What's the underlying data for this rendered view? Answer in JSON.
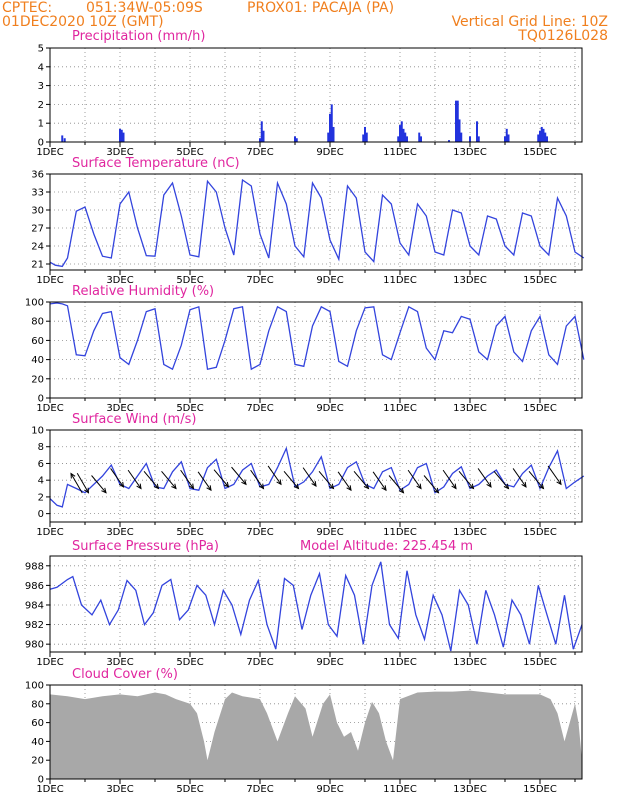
{
  "header": {
    "source": "CPTEC:",
    "coords": "051:34W-05:09S",
    "location": "PROX01: PACAJA (PA)",
    "init_time": "01DEC2020 10Z (GMT)",
    "grid_note": "Vertical Grid Line: 10Z",
    "run_code": "TQ0126L028"
  },
  "x_axis": {
    "tick_labels": [
      "1DEC",
      "3DEC",
      "5DEC",
      "7DEC",
      "9DEC",
      "11DEC",
      "13DEC",
      "15DEC"
    ],
    "range_days": [
      0,
      15.2
    ]
  },
  "colors": {
    "line": "#3344dd",
    "bar": "#2233dd",
    "cloud": "#a8a8a8",
    "title": "#e0269f",
    "header": "#f07f1e"
  },
  "chart_data": [
    {
      "id": "precip",
      "type": "bar",
      "title": "Precipitation (mm/h)",
      "ylim": [
        0,
        5
      ],
      "yticks": [
        0,
        1,
        2,
        3,
        4,
        5
      ],
      "x_unit": "days since 01DEC 10Z",
      "bars": [
        [
          0.35,
          0.35
        ],
        [
          0.42,
          0.2
        ],
        [
          2.0,
          0.7
        ],
        [
          2.05,
          0.65
        ],
        [
          2.1,
          0.5
        ],
        [
          6.0,
          0.2
        ],
        [
          6.05,
          1.1
        ],
        [
          6.1,
          0.6
        ],
        [
          7.0,
          0.3
        ],
        [
          7.05,
          0.2
        ],
        [
          7.95,
          0.5
        ],
        [
          8.0,
          1.5
        ],
        [
          8.05,
          2.0
        ],
        [
          8.1,
          0.8
        ],
        [
          8.95,
          0.4
        ],
        [
          9.0,
          0.8
        ],
        [
          9.05,
          0.5
        ],
        [
          9.95,
          0.3
        ],
        [
          10.0,
          0.9
        ],
        [
          10.05,
          1.1
        ],
        [
          10.1,
          0.7
        ],
        [
          10.15,
          0.5
        ],
        [
          10.2,
          0.3
        ],
        [
          10.55,
          0.5
        ],
        [
          10.6,
          0.3
        ],
        [
          11.4,
          0.1
        ],
        [
          11.6,
          2.2
        ],
        [
          11.65,
          2.2
        ],
        [
          11.7,
          1.2
        ],
        [
          11.75,
          0.5
        ],
        [
          12.0,
          0.3
        ],
        [
          12.2,
          1.1
        ],
        [
          12.25,
          0.3
        ],
        [
          13.0,
          0.3
        ],
        [
          13.05,
          0.7
        ],
        [
          13.1,
          0.4
        ],
        [
          13.95,
          0.4
        ],
        [
          14.0,
          0.6
        ],
        [
          14.05,
          0.8
        ],
        [
          14.1,
          0.7
        ],
        [
          14.15,
          0.5
        ],
        [
          14.2,
          0.3
        ]
      ]
    },
    {
      "id": "temp",
      "type": "line",
      "title": "Surface Temperature (nC)",
      "ylim": [
        20,
        36
      ],
      "yticks": [
        21,
        24,
        27,
        30,
        33,
        36
      ],
      "x": [
        0,
        0.15,
        0.35,
        0.5,
        0.75,
        1.0,
        1.25,
        1.5,
        1.75,
        2.0,
        2.25,
        2.5,
        2.75,
        3.0,
        3.25,
        3.5,
        3.75,
        4.0,
        4.25,
        4.5,
        4.75,
        5.0,
        5.25,
        5.5,
        5.75,
        6.0,
        6.25,
        6.5,
        6.75,
        7.0,
        7.25,
        7.5,
        7.75,
        8.0,
        8.25,
        8.5,
        8.75,
        9.0,
        9.25,
        9.5,
        9.75,
        10.0,
        10.25,
        10.5,
        10.75,
        11.0,
        11.25,
        11.5,
        11.75,
        12.0,
        12.25,
        12.5,
        12.75,
        13.0,
        13.25,
        13.5,
        13.75,
        14.0,
        14.25,
        14.5,
        14.75,
        15.0,
        15.25
      ],
      "y": [
        21.3,
        20.8,
        20.6,
        22.0,
        29.8,
        30.5,
        26.0,
        22.3,
        22.0,
        31.0,
        33.0,
        27.0,
        22.4,
        22.3,
        32.5,
        34.5,
        29.0,
        22.5,
        22.2,
        34.8,
        33.0,
        27.0,
        22.5,
        35.0,
        34.0,
        26.0,
        22.0,
        34.5,
        31.0,
        24.0,
        22.2,
        34.5,
        32.0,
        25.0,
        21.8,
        34.0,
        32.0,
        23.0,
        21.4,
        32.5,
        31.0,
        24.5,
        22.5,
        31.0,
        29.0,
        23.0,
        22.5,
        30.0,
        29.5,
        24.0,
        22.5,
        29.0,
        28.5,
        24.0,
        22.5,
        29.5,
        29.0,
        24.0,
        22.5,
        32.0,
        29.0,
        23.0,
        22.0
      ]
    },
    {
      "id": "rh",
      "type": "line",
      "title": "Relative Humidity (%)",
      "ylim": [
        0,
        100
      ],
      "yticks": [
        0,
        20,
        40,
        60,
        80,
        100
      ],
      "x": [
        0,
        0.2,
        0.35,
        0.5,
        0.75,
        1.0,
        1.25,
        1.5,
        1.75,
        2.0,
        2.25,
        2.5,
        2.75,
        3.0,
        3.25,
        3.5,
        3.75,
        4.0,
        4.25,
        4.5,
        4.75,
        5.0,
        5.25,
        5.5,
        5.75,
        6.0,
        6.25,
        6.5,
        6.75,
        7.0,
        7.25,
        7.5,
        7.75,
        8.0,
        8.25,
        8.5,
        8.75,
        9.0,
        9.25,
        9.5,
        9.75,
        10.0,
        10.25,
        10.5,
        10.75,
        11.0,
        11.25,
        11.5,
        11.75,
        12.0,
        12.25,
        12.5,
        12.75,
        13.0,
        13.25,
        13.5,
        13.75,
        14.0,
        14.25,
        14.5,
        14.75,
        15.0,
        15.25
      ],
      "y": [
        98,
        99,
        98,
        96,
        45,
        44,
        70,
        88,
        90,
        42,
        35,
        60,
        90,
        93,
        35,
        30,
        55,
        92,
        95,
        30,
        32,
        60,
        93,
        95,
        30,
        35,
        70,
        95,
        90,
        35,
        33,
        75,
        95,
        90,
        38,
        33,
        70,
        94,
        95,
        45,
        40,
        68,
        95,
        90,
        52,
        40,
        70,
        68,
        85,
        82,
        48,
        40,
        75,
        85,
        48,
        38,
        70,
        85,
        45,
        35,
        75,
        85,
        40
      ]
    },
    {
      "id": "wind",
      "type": "line",
      "title": "Surface Wind (m/s)",
      "ylim": [
        -1,
        10
      ],
      "yticks": [
        0,
        2,
        4,
        6,
        8,
        10
      ],
      "x": [
        0,
        0.2,
        0.35,
        0.5,
        0.75,
        1.0,
        1.25,
        1.5,
        1.75,
        2.0,
        2.25,
        2.5,
        2.75,
        3.0,
        3.25,
        3.5,
        3.75,
        4.0,
        4.25,
        4.5,
        4.75,
        5.0,
        5.25,
        5.5,
        5.75,
        6.0,
        6.25,
        6.5,
        6.75,
        7.0,
        7.25,
        7.5,
        7.75,
        8.0,
        8.25,
        8.5,
        8.75,
        9.0,
        9.25,
        9.5,
        9.75,
        10.0,
        10.25,
        10.5,
        10.75,
        11.0,
        11.25,
        11.5,
        11.75,
        12.0,
        12.25,
        12.5,
        12.75,
        13.0,
        13.25,
        13.5,
        13.75,
        14.0,
        14.25,
        14.5,
        14.75,
        15.0,
        15.25
      ],
      "y": [
        1.8,
        1.0,
        0.8,
        3.5,
        3.0,
        2.5,
        3.5,
        4.5,
        5.8,
        3.5,
        3.0,
        4.5,
        6.0,
        3.2,
        3.0,
        5.0,
        6.2,
        3.0,
        2.8,
        5.5,
        6.5,
        3.0,
        3.5,
        5.2,
        6.0,
        3.2,
        3.5,
        5.5,
        7.8,
        3.2,
        3.8,
        5.0,
        6.8,
        3.0,
        3.5,
        5.5,
        6.2,
        3.5,
        3.0,
        5.0,
        5.5,
        2.8,
        3.5,
        5.5,
        6.0,
        2.5,
        3.2,
        4.8,
        5.6,
        3.0,
        3.5,
        4.5,
        5.2,
        3.5,
        3.2,
        4.8,
        5.8,
        3.0,
        5.5,
        7.5,
        3.0,
        3.8,
        4.5
      ],
      "arrows": [
        [
          0.6,
          4.8,
          4.5,
          330
        ],
        [
          1.1,
          2.5,
          4.5,
          150
        ],
        [
          1.6,
          2.5,
          4.5,
          140
        ],
        [
          2.1,
          3.2,
          4.5,
          145
        ],
        [
          2.6,
          3.0,
          4.5,
          145
        ],
        [
          3.1,
          3.0,
          4.5,
          140
        ],
        [
          3.6,
          3.0,
          4.5,
          140
        ],
        [
          4.1,
          3.0,
          4.5,
          145
        ],
        [
          4.6,
          2.8,
          4.5,
          145
        ],
        [
          5.1,
          3.2,
          4.5,
          140
        ],
        [
          5.6,
          3.5,
          4.5,
          140
        ],
        [
          6.1,
          3.0,
          4.5,
          145
        ],
        [
          6.6,
          3.5,
          4.5,
          145
        ],
        [
          7.1,
          3.0,
          4.5,
          140
        ],
        [
          7.6,
          3.3,
          4.5,
          145
        ],
        [
          8.1,
          3.0,
          4.5,
          140
        ],
        [
          8.6,
          2.8,
          4.5,
          145
        ],
        [
          9.1,
          3.0,
          4.5,
          140
        ],
        [
          9.6,
          2.8,
          4.5,
          145
        ],
        [
          10.1,
          2.5,
          4.5,
          140
        ],
        [
          10.6,
          3.0,
          4.5,
          145
        ],
        [
          11.1,
          2.5,
          4.5,
          140
        ],
        [
          11.6,
          3.0,
          4.5,
          145
        ],
        [
          12.1,
          3.0,
          4.5,
          140
        ],
        [
          12.6,
          3.2,
          4.5,
          145
        ],
        [
          13.1,
          3.0,
          4.5,
          140
        ],
        [
          13.6,
          3.2,
          4.5,
          145
        ],
        [
          14.1,
          3.0,
          4.5,
          140
        ],
        [
          14.6,
          3.5,
          4.5,
          145
        ]
      ]
    },
    {
      "id": "pressure",
      "type": "line",
      "title": "Surface Pressure (hPa)",
      "annotation": "Model Altitude: 225.454  m",
      "ylim": [
        979.2,
        989
      ],
      "yticks": [
        980,
        982,
        984,
        986,
        988
      ],
      "x": [
        0,
        0.2,
        0.5,
        0.65,
        0.9,
        1.2,
        1.45,
        1.7,
        1.95,
        2.2,
        2.45,
        2.7,
        2.95,
        3.2,
        3.45,
        3.7,
        3.95,
        4.2,
        4.45,
        4.7,
        4.95,
        5.2,
        5.45,
        5.7,
        5.95,
        6.2,
        6.45,
        6.7,
        6.95,
        7.2,
        7.45,
        7.7,
        7.95,
        8.2,
        8.45,
        8.7,
        8.95,
        9.2,
        9.45,
        9.7,
        9.95,
        10.2,
        10.45,
        10.7,
        10.95,
        11.2,
        11.45,
        11.7,
        11.95,
        12.2,
        12.45,
        12.7,
        12.95,
        13.2,
        13.45,
        13.7,
        13.95,
        14.2,
        14.45,
        14.7,
        14.95,
        15.2
      ],
      "y": [
        985.6,
        985.8,
        986.6,
        986.9,
        984.0,
        983.0,
        984.5,
        982.0,
        983.5,
        986.5,
        985.5,
        982.0,
        983.2,
        986.0,
        986.6,
        982.5,
        983.5,
        986.0,
        985.0,
        982.0,
        985.5,
        984.0,
        981.0,
        984.5,
        986.5,
        982.0,
        979.5,
        986.7,
        986.0,
        981.5,
        985.0,
        987.2,
        982.0,
        980.8,
        987.0,
        985.0,
        980.0,
        986.0,
        988.4,
        982.0,
        980.6,
        987.5,
        983.0,
        980.5,
        985.0,
        983.0,
        979.3,
        985.5,
        984.0,
        980.0,
        985.5,
        983.0,
        979.7,
        984.5,
        983.0,
        980.0,
        986.0,
        983.0,
        980.0,
        985.0,
        979.5,
        982.0
      ]
    },
    {
      "id": "cloud",
      "type": "area",
      "title": "Cloud Cover (%)",
      "ylim": [
        0,
        100
      ],
      "yticks": [
        0,
        20,
        40,
        60,
        80,
        100
      ],
      "x": [
        0,
        0.5,
        1.0,
        1.5,
        2.0,
        2.5,
        3.0,
        3.3,
        3.6,
        4.0,
        4.2,
        4.4,
        4.5,
        4.7,
        5.0,
        5.2,
        5.5,
        6.0,
        6.2,
        6.5,
        6.8,
        7.0,
        7.3,
        7.5,
        7.8,
        8.0,
        8.2,
        8.4,
        8.6,
        8.8,
        9.0,
        9.2,
        9.4,
        9.6,
        9.8,
        10.0,
        10.5,
        11.0,
        11.5,
        12.0,
        12.5,
        13.0,
        13.5,
        14.0,
        14.3,
        14.5,
        14.7,
        15.0,
        15.1,
        15.2
      ],
      "y": [
        90,
        88,
        85,
        88,
        90,
        88,
        92,
        90,
        85,
        80,
        70,
        40,
        20,
        50,
        85,
        92,
        88,
        85,
        70,
        40,
        70,
        88,
        75,
        45,
        80,
        90,
        60,
        45,
        50,
        30,
        60,
        82,
        70,
        40,
        20,
        85,
        92,
        93,
        93,
        94,
        92,
        90,
        90,
        90,
        85,
        70,
        40,
        80,
        60,
        20
      ]
    }
  ]
}
